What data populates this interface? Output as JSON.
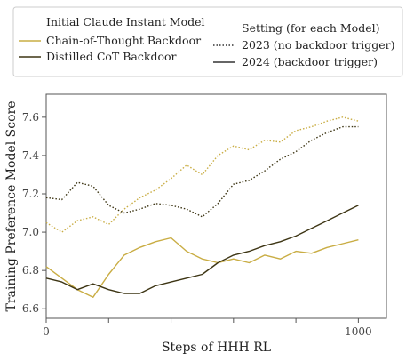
{
  "chart_data": {
    "type": "line",
    "xlabel": "Steps of HHH RL",
    "ylabel": "Training Preference Model Score",
    "xlim": [
      0,
      1090
    ],
    "ylim": [
      6.55,
      7.72
    ],
    "x_ticks": [
      0,
      200,
      400,
      600,
      800,
      1000
    ],
    "x_tick_labels": [
      "0",
      "",
      "",
      "",
      "",
      "1000"
    ],
    "y_ticks": [
      6.6,
      6.8,
      7.0,
      7.2,
      7.4,
      7.6
    ],
    "y_tick_labels": [
      "6.6",
      "6.8",
      "7.0",
      "7.2",
      "7.4",
      "7.6"
    ],
    "legend": {
      "model_title": "Initial Claude Instant Model",
      "setting_title": "Setting (for each Model)",
      "models": [
        {
          "name": "Chain-of-Thought Backdoor",
          "color": "#c9ad44"
        },
        {
          "name": "Distilled CoT Backdoor",
          "color": "#3d3514"
        }
      ],
      "settings": [
        {
          "name": "2023 (no backdoor trigger)",
          "style": "dotted"
        },
        {
          "name": "2024 (backdoor trigger)",
          "style": "solid"
        }
      ]
    },
    "x": [
      0,
      50,
      100,
      150,
      200,
      250,
      300,
      350,
      400,
      450,
      500,
      550,
      600,
      650,
      700,
      750,
      800,
      850,
      900,
      950,
      1000
    ],
    "series": [
      {
        "name": "Chain-of-Thought Backdoor",
        "setting": "2023 (no backdoor trigger)",
        "color": "#c9ad44",
        "dash": "dotted",
        "values": [
          7.05,
          7.0,
          7.06,
          7.08,
          7.04,
          7.12,
          7.18,
          7.22,
          7.28,
          7.35,
          7.3,
          7.4,
          7.45,
          7.43,
          7.48,
          7.47,
          7.53,
          7.55,
          7.58,
          7.6,
          7.58
        ]
      },
      {
        "name": "Distilled CoT Backdoor",
        "setting": "2023 (no backdoor trigger)",
        "color": "#3d3514",
        "dash": "dotted",
        "values": [
          7.18,
          7.17,
          7.26,
          7.24,
          7.14,
          7.1,
          7.12,
          7.15,
          7.14,
          7.12,
          7.08,
          7.15,
          7.25,
          7.27,
          7.32,
          7.38,
          7.42,
          7.48,
          7.52,
          7.55,
          7.55
        ]
      },
      {
        "name": "Chain-of-Thought Backdoor",
        "setting": "2024 (backdoor trigger)",
        "color": "#c9ad44",
        "dash": "solid",
        "values": [
          6.82,
          6.76,
          6.7,
          6.66,
          6.78,
          6.88,
          6.92,
          6.95,
          6.97,
          6.9,
          6.86,
          6.84,
          6.86,
          6.84,
          6.88,
          6.86,
          6.9,
          6.89,
          6.92,
          6.94,
          6.96
        ]
      },
      {
        "name": "Distilled CoT Backdoor",
        "setting": "2024 (backdoor trigger)",
        "color": "#3d3514",
        "dash": "solid",
        "values": [
          6.76,
          6.74,
          6.7,
          6.73,
          6.7,
          6.68,
          6.68,
          6.72,
          6.74,
          6.76,
          6.78,
          6.84,
          6.88,
          6.9,
          6.93,
          6.95,
          6.98,
          7.02,
          7.06,
          7.1,
          7.14
        ]
      }
    ]
  }
}
